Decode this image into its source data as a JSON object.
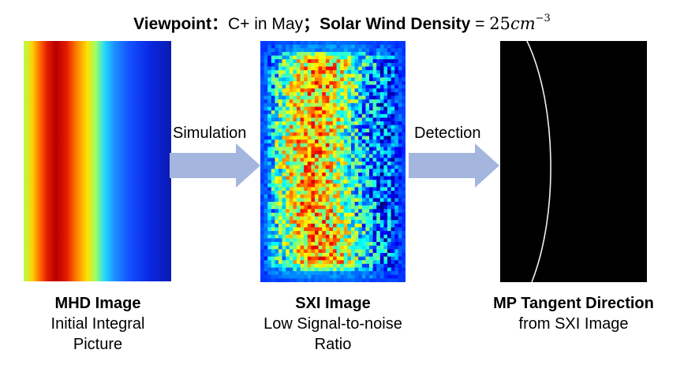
{
  "header": {
    "viewpoint_label": "Viewpoint",
    "viewpoint_sep": "：",
    "viewpoint_value": "C+ in May",
    "item_sep": "；",
    "density_label": "Solar Wind Density",
    "density_equals": " = ",
    "density_value": "25",
    "density_unit": "cm",
    "density_exponent": "−3"
  },
  "panels": {
    "mhd": {
      "title": "MHD Image",
      "line1": "Initial Integral",
      "line2": "Picture"
    },
    "sxi": {
      "title": "SXI Image",
      "line1": "Low Signal-to-noise",
      "line2": "Ratio"
    },
    "mp": {
      "title": "MP Tangent Direction",
      "line1": "from SXI Image"
    }
  },
  "arrows": {
    "simulation": "Simulation",
    "detection": "Detection"
  },
  "colors": {
    "arrow_fill": "#a4b5de",
    "mp_line": "#f0f0f0"
  }
}
